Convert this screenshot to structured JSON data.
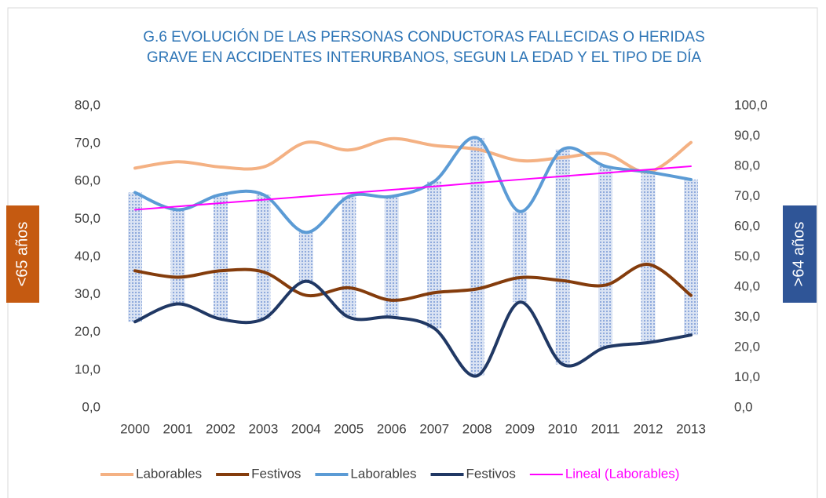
{
  "chart_data": {
    "type": "line",
    "title": [
      "G.6  EVOLUCIÓN DE LAS PERSONAS CONDUCTORAS FALLECIDAS O HERIDAS",
      "GRAVE EN ACCIDENTES INTERURBANOS, SEGUN LA EDAD Y EL TIPO DE DÍA"
    ],
    "y_label": "<65 años",
    "y2_label": ">64 años",
    "categories": [
      "2000",
      "2001",
      "2002",
      "2003",
      "2004",
      "2005",
      "2006",
      "2007",
      "2008",
      "2009",
      "2010",
      "2011",
      "2012",
      "2013"
    ],
    "series": [
      {
        "name": "Laborables",
        "color": "#f4b183",
        "axis": "y",
        "smooth": true,
        "values": [
          63.5,
          65.2,
          63.8,
          63.8,
          70.3,
          68.3,
          71.3,
          69.5,
          68.5,
          65.5,
          66.3,
          67.3,
          62.5,
          70.3
        ]
      },
      {
        "name": "Festivos",
        "color": "#843c0c",
        "axis": "y",
        "smooth": true,
        "values": [
          36.3,
          34.6,
          36.3,
          36.0,
          29.8,
          31.8,
          28.5,
          30.5,
          31.5,
          34.5,
          33.7,
          32.5,
          38.0,
          29.8
        ]
      },
      {
        "name": "Laborables",
        "color": "#5b9bd5",
        "axis": "y2",
        "smooth": true,
        "values": [
          71.3,
          65.6,
          70.6,
          70.6,
          58.1,
          70.0,
          70.0,
          75.0,
          89.4,
          65.0,
          85.6,
          80.0,
          78.1,
          75.6
        ]
      },
      {
        "name": "Festivos",
        "color": "#203864",
        "axis": "y2",
        "smooth": true,
        "values": [
          28.5,
          34.4,
          29.4,
          29.4,
          41.9,
          30.0,
          30.0,
          26.3,
          10.6,
          35.0,
          14.4,
          20.0,
          21.6,
          24.1
        ]
      },
      {
        "name": "Lineal (Laborables)",
        "color": "#ff00ff",
        "axis": "y2",
        "smooth": false,
        "values": [
          65.6,
          66.7,
          67.8,
          68.9,
          70.0,
          71.1,
          72.2,
          73.3,
          74.5,
          75.6,
          76.7,
          77.8,
          78.9,
          80.0
        ]
      }
    ],
    "hilo_bars": {
      "between": [
        2,
        3
      ],
      "color": "#b4c7e7"
    },
    "ylim": [
      0,
      80
    ],
    "yticks": [
      {
        "value": 0,
        "label": "0,0"
      },
      {
        "value": 10,
        "label": "10,0"
      },
      {
        "value": 20,
        "label": "20,0"
      },
      {
        "value": 30,
        "label": "30,0"
      },
      {
        "value": 40,
        "label": "40,0"
      },
      {
        "value": 50,
        "label": "50,0"
      },
      {
        "value": 60,
        "label": "60,0"
      },
      {
        "value": 70,
        "label": "70,0"
      },
      {
        "value": 80,
        "label": "80,0"
      }
    ],
    "y2lim": [
      0,
      100
    ],
    "y2ticks": [
      {
        "value": 0,
        "label": "0,0"
      },
      {
        "value": 10,
        "label": "10,0"
      },
      {
        "value": 20,
        "label": "20,0"
      },
      {
        "value": 30,
        "label": "30,0"
      },
      {
        "value": 40,
        "label": "40,0"
      },
      {
        "value": 50,
        "label": "50,0"
      },
      {
        "value": 60,
        "label": "60,0"
      },
      {
        "value": 70,
        "label": "70,0"
      },
      {
        "value": 80,
        "label": "80,0"
      },
      {
        "value": 90,
        "label": "90,0"
      },
      {
        "value": 100,
        "label": "100,0"
      }
    ],
    "grid": false,
    "legend": "bottom"
  }
}
